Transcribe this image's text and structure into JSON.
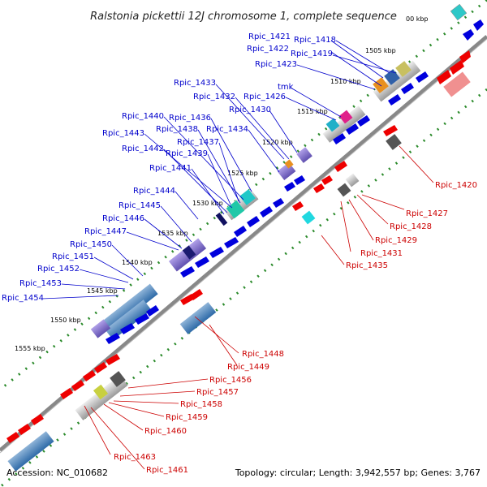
{
  "title": "Ralstonia pickettii 12J chromosome 1, complete sequence",
  "footer": {
    "accession": "Accession: NC_010682",
    "summary": "Topology: circular; Length: 3,942,557 bp; Genes: 3,767"
  },
  "kbp_ticks": [
    "00 kbp",
    "1505 kbp",
    "1510 kbp",
    "1515 kbp",
    "1520 kbp",
    "1525 kbp",
    "1530 kbp",
    "1535 kbp",
    "1540 kbp",
    "1545 kbp",
    "1550 kbp",
    "1555 kbp"
  ],
  "labels_top": [
    "Rpic_1421",
    "Rpic_1418",
    "Rpic_1422",
    "Rpic_1419",
    "Rpic_1423",
    "Rpic_1433",
    "tmk",
    "Rpic_1432",
    "Rpic_1426",
    "Rpic_1430",
    "Rpic_1440",
    "Rpic_1436",
    "Rpic_1438",
    "Rpic_1434",
    "Rpic_1443",
    "Rpic_1437",
    "Rpic_1442",
    "Rpic_1439",
    "Rpic_1441",
    "Rpic_1444",
    "Rpic_1445",
    "Rpic_1446",
    "Rpic_1447",
    "Rpic_1450",
    "Rpic_1451",
    "Rpic_1452",
    "Rpic_1453",
    "Rpic_1454"
  ],
  "labels_bottom": [
    "Rpic_1420",
    "Rpic_1427",
    "Rpic_1428",
    "Rpic_1429",
    "Rpic_1431",
    "Rpic_1435",
    "Rpic_1448",
    "Rpic_1449",
    "Rpic_1456",
    "Rpic_1457",
    "Rpic_1458",
    "Rpic_1459",
    "Rpic_1460",
    "Rpic_1463",
    "Rpic_1461"
  ],
  "colors": {
    "forward_cds": "#0000dd",
    "reverse_cds": "#ee0000",
    "backbone": "#888888",
    "tick_dots": "#2a8a2a"
  }
}
